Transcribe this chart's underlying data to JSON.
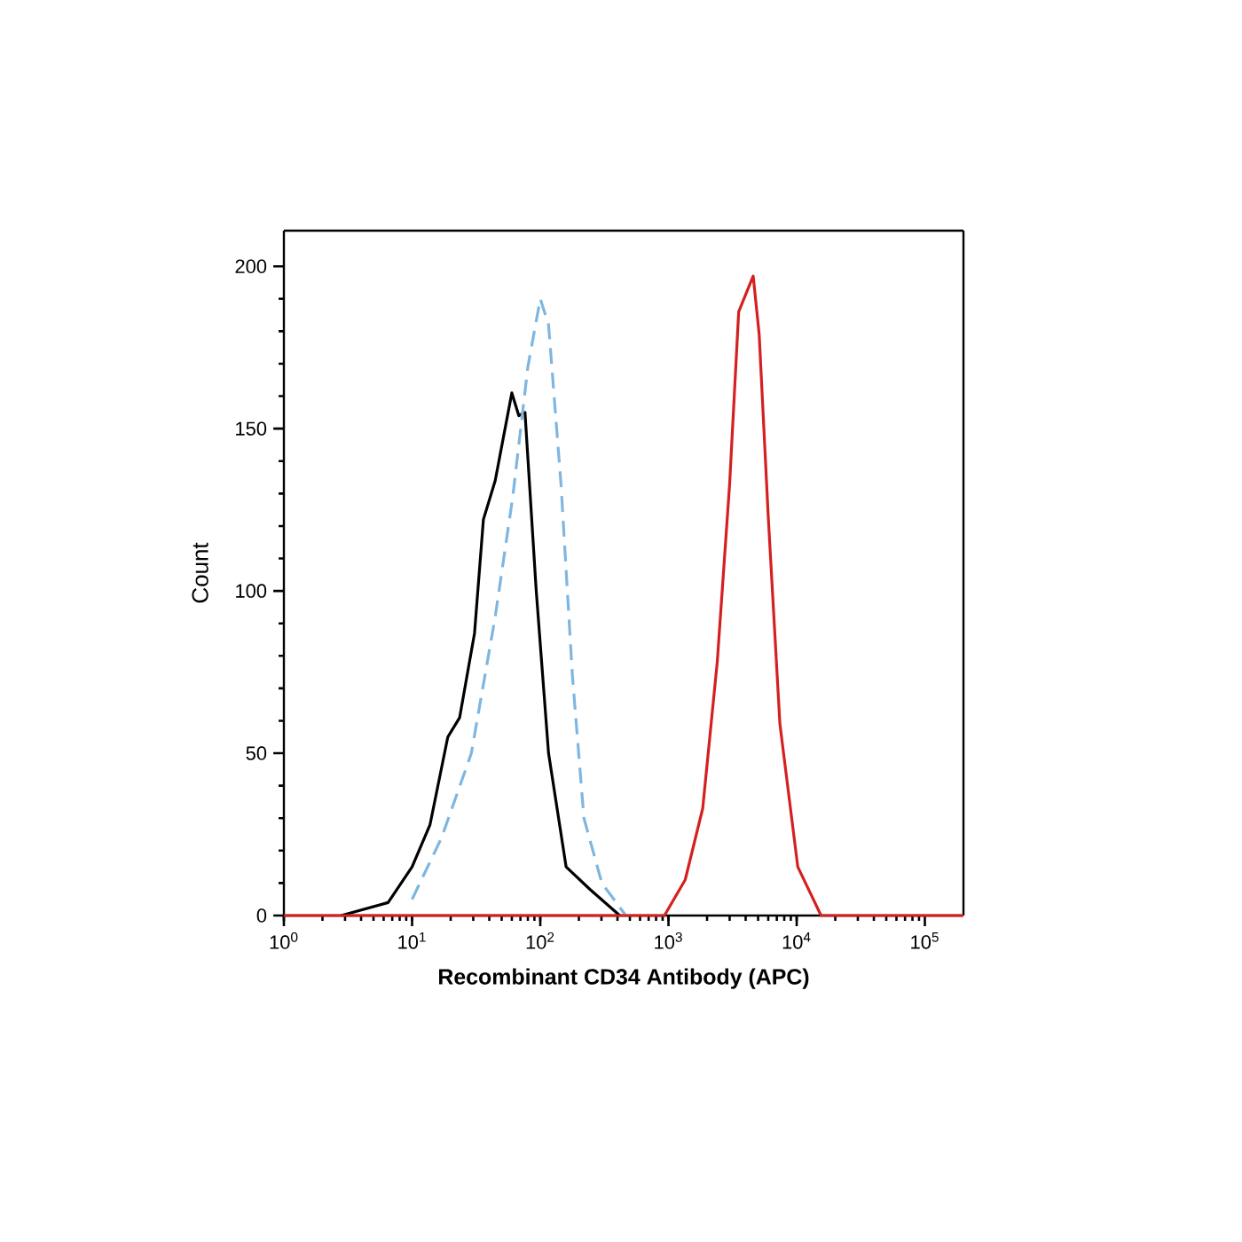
{
  "chart_data": {
    "type": "line",
    "xlabel": "Recombinant CD34 Antibody (APC)",
    "ylabel": "Count",
    "log": "x",
    "xlim": [
      1,
      200000
    ],
    "ylim": [
      0,
      211
    ],
    "xticks": [
      {
        "value": 1,
        "label": "10$^{0}$"
      },
      {
        "value": 10,
        "label": "10$^{1}$"
      },
      {
        "value": 100,
        "label": "10$^{2}$"
      },
      {
        "value": 1000,
        "label": "10$^{3}$"
      },
      {
        "value": 10000,
        "label": "10$^{4}$"
      },
      {
        "value": 100000,
        "label": "10$^{5}$"
      }
    ],
    "yticks": [
      0,
      50,
      100,
      150,
      200
    ],
    "marker": "none",
    "series": [
      {
        "color": "#000000",
        "line_style": "solid",
        "x": [
          2.8,
          6.5,
          10,
          13.8,
          19,
          23.5,
          30.7,
          36,
          44.5,
          60,
          68,
          76,
          93,
          116,
          159,
          245,
          417
        ],
        "values": [
          0,
          4,
          15,
          28,
          55,
          61,
          87,
          122,
          134,
          161,
          154,
          155,
          100,
          50,
          15,
          8,
          0
        ]
      },
      {
        "color": "#7fb6e0",
        "line_style": "dashed",
        "x": [
          10,
          17,
          29,
          44.5,
          61,
          80,
          100,
          116,
          145,
          178,
          219,
          302,
          465
        ],
        "values": [
          5,
          24,
          50,
          92,
          129,
          169,
          190,
          182,
          133,
          74,
          30,
          10,
          0
        ]
      },
      {
        "color": "#d42020",
        "line_style": "solid",
        "x": [
          1,
          930,
          1350,
          1850,
          2400,
          3000,
          3530,
          4580,
          5100,
          6000,
          7400,
          10200,
          15500,
          200000
        ],
        "values": [
          0,
          0,
          11,
          33,
          78,
          133,
          186,
          197,
          179,
          123,
          59,
          15,
          0,
          0
        ]
      }
    ]
  }
}
